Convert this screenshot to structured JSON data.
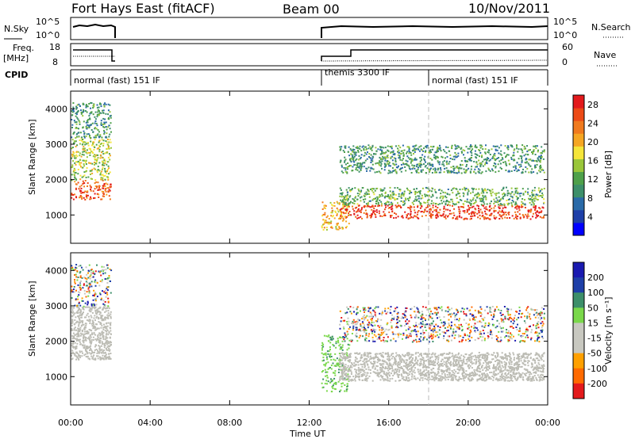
{
  "header": {
    "title": "Fort Hays East (fitACF)",
    "beam": "Beam 00",
    "date": "10/Nov/2011"
  },
  "panel_labels": {
    "nsky": "N.Sky",
    "nsearch": "N.Search",
    "freq_line1": "Freq.",
    "freq_line2": "[MHz]",
    "nave": "Nave",
    "cpid": "CPID",
    "nsky_top": "10^5",
    "nsky_bottom": "10^0",
    "nsearch_top": "10^5",
    "nsearch_bottom": "10^0",
    "freq_top": "18",
    "freq_bottom": "8",
    "nave_top": "60",
    "nave_bottom": "0"
  },
  "modes": [
    {
      "label": "normal (fast) 151 IF",
      "start_h": 0.0,
      "end_h": 12.6
    },
    {
      "label": "themis 3300 IF",
      "start_h": 12.6,
      "end_h": 18.0
    },
    {
      "label": "normal (fast) 151 IF",
      "start_h": 18.0,
      "end_h": 24.0
    }
  ],
  "colors": {
    "power": [
      "#0000ff",
      "#1e3fa8",
      "#2a6aa8",
      "#3d8f6a",
      "#4ea04a",
      "#9ac63a",
      "#f5e53a",
      "#f5a623",
      "#f07a1e",
      "#ec4a16",
      "#e31a1c"
    ],
    "velocity": [
      "#e31a1c",
      "#ff6a00",
      "#ffa000",
      "#c8c8c0",
      "#c8c8c0",
      "#7ad84a",
      "#3d8f6a",
      "#1e3fa8",
      "#1a1ab0"
    ],
    "ground_scatter": "#bcbcb4"
  },
  "chart_data": [
    {
      "type": "heatmap",
      "title": "Power",
      "xlabel": "Time UT",
      "ylabel": "Slant Range [km]",
      "xlim": [
        0,
        24
      ],
      "ylim": [
        200,
        4500
      ],
      "x_ticks": [
        "00:00",
        "04:00",
        "08:00",
        "12:00",
        "16:00",
        "20:00",
        "00:00"
      ],
      "y_ticks": [
        1000,
        2000,
        3000,
        4000
      ],
      "colorbar": {
        "label": "Power [dB]",
        "ticks": [
          4,
          8,
          12,
          16,
          20,
          24,
          28
        ],
        "range": [
          0,
          30
        ]
      },
      "scatter_regions": [
        {
          "t": [
            0.0,
            2.0
          ],
          "range_km": [
            1450,
            2000
          ],
          "level_db": 26
        },
        {
          "t": [
            0.0,
            2.0
          ],
          "range_km": [
            2000,
            3200
          ],
          "level_db": 16
        },
        {
          "t": [
            0.0,
            2.0
          ],
          "range_km": [
            3200,
            4200
          ],
          "level_db": 10
        },
        {
          "t": [
            12.6,
            14.0
          ],
          "range_km": [
            600,
            1400
          ],
          "level_db": 20
        },
        {
          "t": [
            13.5,
            23.8
          ],
          "range_km": [
            900,
            1300
          ],
          "level_db": 28
        },
        {
          "t": [
            13.5,
            23.8
          ],
          "range_km": [
            1300,
            1800
          ],
          "level_db": 12
        },
        {
          "t": [
            13.5,
            23.8
          ],
          "range_km": [
            2200,
            3000
          ],
          "level_db": 10
        }
      ]
    },
    {
      "type": "heatmap",
      "title": "Velocity",
      "xlabel": "Time UT",
      "ylabel": "Slant Range [km]",
      "xlim": [
        0,
        24
      ],
      "ylim": [
        200,
        4500
      ],
      "x_ticks": [
        "00:00",
        "04:00",
        "08:00",
        "12:00",
        "16:00",
        "20:00",
        "00:00"
      ],
      "y_ticks": [
        1000,
        2000,
        3000,
        4000
      ],
      "colorbar": {
        "label": "Velocity [m s^-1]",
        "ticks": [
          200,
          100,
          50,
          15,
          -15,
          -50,
          -100,
          -200
        ]
      },
      "scatter_regions": [
        {
          "t": [
            0.0,
            2.0
          ],
          "range_km": [
            1500,
            3000
          ],
          "kind": "ground"
        },
        {
          "t": [
            0.0,
            2.0
          ],
          "range_km": [
            3000,
            4200
          ],
          "kind": "ionospheric"
        },
        {
          "t": [
            12.6,
            14.0
          ],
          "range_km": [
            600,
            2200
          ],
          "kind": "ionospheric-green"
        },
        {
          "t": [
            13.5,
            23.8
          ],
          "range_km": [
            900,
            1700
          ],
          "kind": "ground"
        },
        {
          "t": [
            13.5,
            23.8
          ],
          "range_km": [
            2000,
            3000
          ],
          "kind": "ionospheric"
        }
      ]
    }
  ]
}
